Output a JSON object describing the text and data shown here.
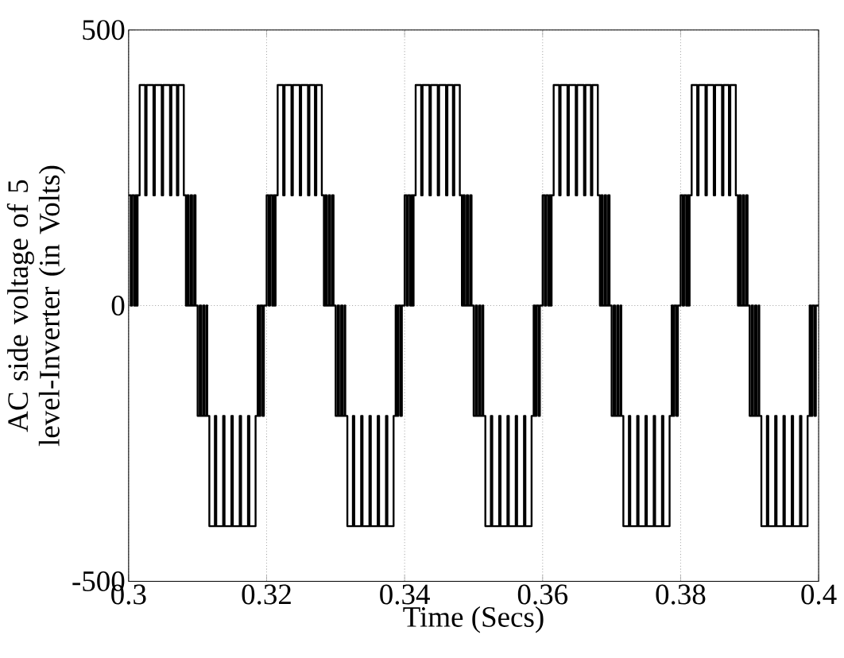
{
  "chart_data": {
    "type": "step",
    "xlabel": "Time (Secs)",
    "ylabel": "AC side voltage of 5 level-Inverter (in Volts)",
    "xlim": [
      0.3,
      0.4
    ],
    "xticks": [
      0.3,
      0.32,
      0.34,
      0.36,
      0.38,
      0.4
    ],
    "ylim": [
      -500,
      500
    ],
    "yticks": [
      -500,
      0,
      500
    ],
    "grid": true,
    "series": [
      {
        "color": "#000000",
        "x": [
          0.3,
          0.3003,
          0.3005,
          0.3008,
          0.301,
          0.3012,
          0.3013,
          0.3016,
          0.3024,
          0.3026,
          0.3036,
          0.3038,
          0.3048,
          0.305,
          0.306,
          0.3062,
          0.307,
          0.3072,
          0.308,
          0.3083,
          0.3085,
          0.3087,
          0.309,
          0.3092,
          0.3095,
          0.3097,
          0.31,
          0.3103,
          0.3105,
          0.3108,
          0.311,
          0.3113,
          0.3114,
          0.3117,
          0.3125,
          0.3127,
          0.3137,
          0.3139,
          0.3149,
          0.3151,
          0.3161,
          0.3163,
          0.3173,
          0.3175,
          0.3184,
          0.3187,
          0.3189,
          0.3191,
          0.3194,
          0.3196,
          0.32,
          0.3203,
          0.3205,
          0.3208,
          0.321,
          0.3212,
          0.3213,
          0.3216,
          0.3224,
          0.3226,
          0.3236,
          0.3238,
          0.3248,
          0.325,
          0.326,
          0.3262,
          0.327,
          0.3272,
          0.328,
          0.3283,
          0.3285,
          0.3287,
          0.329,
          0.3292,
          0.3295,
          0.3297,
          0.33,
          0.3303,
          0.3305,
          0.3308,
          0.331,
          0.3313,
          0.3314,
          0.3317,
          0.3325,
          0.3327,
          0.3337,
          0.3339,
          0.3349,
          0.3351,
          0.3361,
          0.3363,
          0.3373,
          0.3375,
          0.3384,
          0.3387,
          0.3389,
          0.3391,
          0.3394,
          0.3396,
          0.34,
          0.3403,
          0.3405,
          0.3408,
          0.341,
          0.3412,
          0.3413,
          0.3416,
          0.3424,
          0.3426,
          0.3436,
          0.3438,
          0.3448,
          0.345,
          0.346,
          0.3462,
          0.347,
          0.3472,
          0.348,
          0.3483,
          0.3485,
          0.3487,
          0.349,
          0.3492,
          0.3495,
          0.3497,
          0.35,
          0.3503,
          0.3505,
          0.3508,
          0.351,
          0.3513,
          0.3514,
          0.3517,
          0.3525,
          0.3527,
          0.3537,
          0.3539,
          0.3549,
          0.3551,
          0.3561,
          0.3563,
          0.3573,
          0.3575,
          0.3584,
          0.3587,
          0.3589,
          0.3591,
          0.3594,
          0.3596,
          0.36,
          0.3603,
          0.3605,
          0.3608,
          0.361,
          0.3612,
          0.3613,
          0.3616,
          0.3624,
          0.3626,
          0.3636,
          0.3638,
          0.3648,
          0.365,
          0.366,
          0.3662,
          0.367,
          0.3672,
          0.368,
          0.3683,
          0.3685,
          0.3687,
          0.369,
          0.3692,
          0.3695,
          0.3697,
          0.37,
          0.3703,
          0.3705,
          0.3708,
          0.371,
          0.3713,
          0.3714,
          0.3717,
          0.3725,
          0.3727,
          0.3737,
          0.3739,
          0.3749,
          0.3751,
          0.3761,
          0.3763,
          0.3773,
          0.3775,
          0.3784,
          0.3787,
          0.3789,
          0.3791,
          0.3794,
          0.3796,
          0.38,
          0.3803,
          0.3805,
          0.3808,
          0.381,
          0.3812,
          0.3813,
          0.3816,
          0.3824,
          0.3826,
          0.3836,
          0.3838,
          0.3848,
          0.385,
          0.386,
          0.3862,
          0.387,
          0.3872,
          0.388,
          0.3883,
          0.3885,
          0.3887,
          0.389,
          0.3892,
          0.3895,
          0.3897,
          0.39,
          0.3903,
          0.3905,
          0.3908,
          0.391,
          0.3913,
          0.3914,
          0.3917,
          0.3925,
          0.3927,
          0.3937,
          0.3939,
          0.3949,
          0.3951,
          0.3961,
          0.3963,
          0.3973,
          0.3975,
          0.3984,
          0.3987,
          0.3989,
          0.3991,
          0.3994,
          0.3996,
          0.4
        ],
        "values": [
          200,
          0,
          200,
          0,
          200,
          0,
          200,
          400,
          200,
          400,
          200,
          400,
          200,
          400,
          200,
          400,
          200,
          400,
          200,
          0,
          200,
          0,
          200,
          0,
          200,
          0,
          -200,
          0,
          -200,
          0,
          -200,
          0,
          -200,
          -400,
          -200,
          -400,
          -200,
          -400,
          -200,
          -400,
          -200,
          -400,
          -200,
          -400,
          -200,
          0,
          -200,
          0,
          -200,
          0,
          200,
          0,
          200,
          0,
          200,
          0,
          200,
          400,
          200,
          400,
          200,
          400,
          200,
          400,
          200,
          400,
          200,
          400,
          200,
          0,
          200,
          0,
          200,
          0,
          200,
          0,
          -200,
          0,
          -200,
          0,
          -200,
          0,
          -200,
          -400,
          -200,
          -400,
          -200,
          -400,
          -200,
          -400,
          -200,
          -400,
          -200,
          -400,
          -200,
          0,
          -200,
          0,
          -200,
          0,
          200,
          0,
          200,
          0,
          200,
          0,
          200,
          400,
          200,
          400,
          200,
          400,
          200,
          400,
          200,
          400,
          200,
          400,
          200,
          0,
          200,
          0,
          200,
          0,
          200,
          0,
          -200,
          0,
          -200,
          0,
          -200,
          0,
          -200,
          -400,
          -200,
          -400,
          -200,
          -400,
          -200,
          -400,
          -200,
          -400,
          -200,
          -400,
          -200,
          0,
          -200,
          0,
          -200,
          0,
          200,
          0,
          200,
          0,
          200,
          0,
          200,
          400,
          200,
          400,
          200,
          400,
          200,
          400,
          200,
          400,
          200,
          400,
          200,
          0,
          200,
          0,
          200,
          0,
          200,
          0,
          -200,
          0,
          -200,
          0,
          -200,
          0,
          -200,
          -400,
          -200,
          -400,
          -200,
          -400,
          -200,
          -400,
          -200,
          -400,
          -200,
          -400,
          -200,
          0,
          -200,
          0,
          -200,
          0,
          200,
          0,
          200,
          0,
          200,
          0,
          200,
          400,
          200,
          400,
          200,
          400,
          200,
          400,
          200,
          400,
          200,
          400,
          200,
          0,
          200,
          0,
          200,
          0,
          200,
          0,
          -200,
          0,
          -200,
          0,
          -200,
          0,
          -200,
          -400,
          -200,
          -400,
          -200,
          -400,
          -200,
          -400,
          -200,
          -400,
          -200,
          -400,
          -200,
          0,
          -200,
          0,
          -200,
          0,
          0
        ]
      }
    ]
  }
}
